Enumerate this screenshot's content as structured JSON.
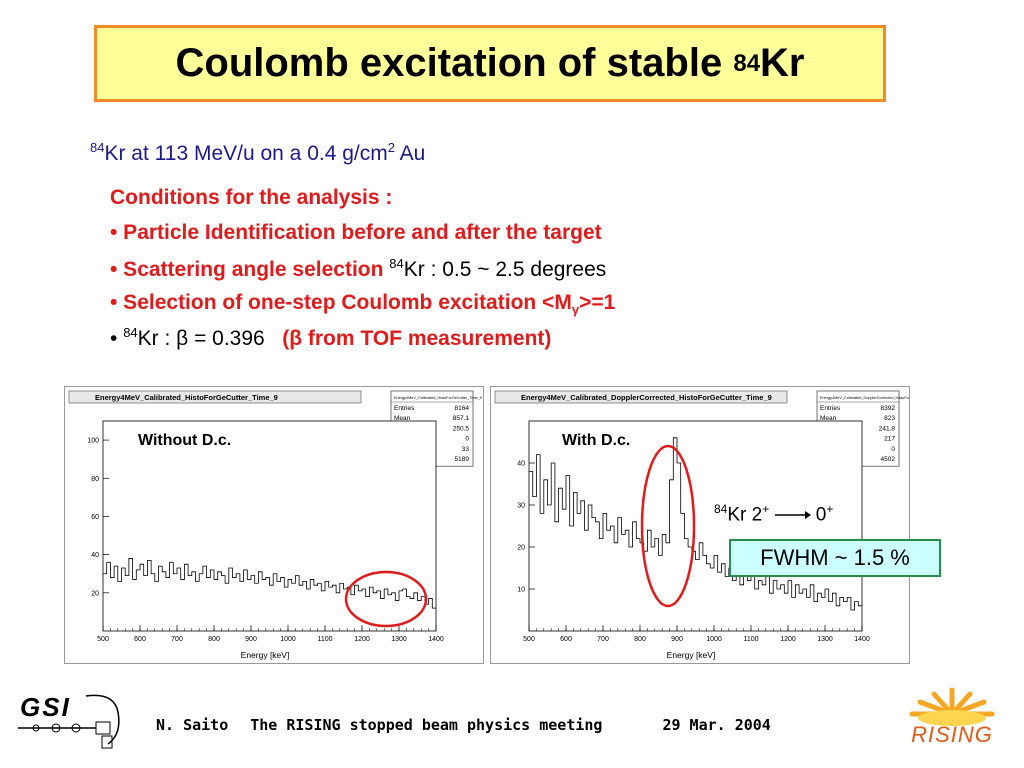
{
  "slide": {
    "title_text": "Coulomb excitation of stable ",
    "title_sup": "84",
    "title_element": "Kr",
    "subtitle": {
      "sup1": "84",
      "text1": "Kr at 113 MeV/u on a 0.4 g/cm",
      "sup2": "2",
      "text2": " Au"
    },
    "conditions": {
      "header": "Conditions for the analysis :",
      "item1": "• Particle Identification before and after the target",
      "item2_red": "• Scattering angle selection ",
      "item2_sup": "84",
      "item2_rest": "Kr : 0.5 ~ 2.5 degrees",
      "item3_red": "• Selection of one-step Coulomb excitation <M",
      "item3_sub": "γ",
      "item3_red2": ">=1",
      "item4_bullet": "• ",
      "item4_sup": "84",
      "item4_text": "Kr : β = 0.396   ",
      "item4_red": "(β from TOF measurement)"
    },
    "annotations": {
      "left_label": "Without D.c.",
      "right_label": "With D.c.",
      "transition_sup": "84",
      "transition_text1": "Kr 2",
      "transition_plus1": "+",
      "transition_text2": "0",
      "transition_plus2": "+",
      "fwhm": "FWHM ~ 1.5 %"
    },
    "footer": {
      "author": "N. Saito",
      "meeting": "The RISING stopped beam physics meeting",
      "date": "29 Mar. 2004"
    },
    "logos": {
      "left": "GSI",
      "right": "RISING"
    },
    "colors": {
      "title_bg": "#ffff99",
      "title_border": "#f08c28",
      "subtitle": "#1a1a8c",
      "red": "#e01b1b",
      "fwhm_bg": "#ccffff",
      "fwhm_border": "#2a8c4a",
      "highlight_circle": "#e01b1b"
    }
  },
  "chart_data": [
    {
      "type": "line",
      "title": "Energy4MeV_Calibrated_HistoForGeCutter_Time_9",
      "xlabel": "Energy [keV]",
      "ylabel": "",
      "xlim": [
        500,
        1400
      ],
      "ylim": [
        0,
        110
      ],
      "x_ticks": [
        500,
        600,
        700,
        800,
        900,
        1000,
        1100,
        1200,
        1300,
        1400
      ],
      "y_ticks": [
        20,
        40,
        60,
        80,
        100
      ],
      "stats": [
        {
          "name": "Entries",
          "value": "8164"
        },
        {
          "name": "Mean",
          "value": "857.1"
        },
        {
          "name": "RMS",
          "value": "250.5"
        },
        {
          "name": "Underflow",
          "value": "0"
        },
        {
          "name": "Overflow",
          "value": "33"
        },
        {
          "name": "Integral",
          "value": "5189"
        }
      ],
      "stats_title": "Energy4MeV_Calibrated_HistoForGeCutter_Time_9",
      "x": [
        500,
        510,
        520,
        530,
        540,
        550,
        560,
        570,
        580,
        590,
        600,
        610,
        620,
        630,
        640,
        650,
        660,
        670,
        680,
        690,
        700,
        710,
        720,
        730,
        740,
        750,
        760,
        770,
        780,
        790,
        800,
        810,
        820,
        830,
        840,
        850,
        860,
        870,
        880,
        890,
        900,
        910,
        920,
        930,
        940,
        950,
        960,
        970,
        980,
        990,
        1000,
        1010,
        1020,
        1030,
        1040,
        1050,
        1060,
        1070,
        1080,
        1090,
        1100,
        1110,
        1120,
        1130,
        1140,
        1150,
        1160,
        1170,
        1180,
        1190,
        1200,
        1210,
        1220,
        1230,
        1240,
        1250,
        1260,
        1270,
        1280,
        1290,
        1300,
        1310,
        1320,
        1330,
        1340,
        1350,
        1360,
        1370,
        1380,
        1390
      ],
      "y": [
        30,
        36,
        28,
        34,
        26,
        33,
        29,
        38,
        27,
        32,
        35,
        29,
        37,
        30,
        26,
        34,
        31,
        28,
        36,
        30,
        33,
        27,
        35,
        29,
        31,
        26,
        30,
        34,
        28,
        32,
        27,
        31,
        29,
        25,
        33,
        28,
        30,
        26,
        32,
        27,
        29,
        25,
        31,
        27,
        28,
        24,
        30,
        26,
        28,
        23,
        27,
        25,
        29,
        24,
        26,
        22,
        27,
        24,
        25,
        21,
        26,
        23,
        24,
        20,
        25,
        22,
        23,
        19,
        24,
        21,
        22,
        18,
        23,
        20,
        21,
        17,
        22,
        19,
        20,
        16,
        21,
        22,
        18,
        17,
        20,
        16,
        18,
        14,
        17,
        12
      ]
    },
    {
      "type": "line",
      "title": "Energy4MeV_Calibrated_DopplerCorrected_HistoForGeCutter_Time_9",
      "xlabel": "Energy [keV]",
      "ylabel": "",
      "xlim": [
        500,
        1400
      ],
      "ylim": [
        0,
        50
      ],
      "x_ticks": [
        500,
        600,
        700,
        800,
        900,
        1000,
        1100,
        1200,
        1300,
        1400
      ],
      "y_ticks": [
        10,
        20,
        30,
        40
      ],
      "stats": [
        {
          "name": "Entries",
          "value": "8392"
        },
        {
          "name": "Mean",
          "value": "823"
        },
        {
          "name": "RMS",
          "value": "241.8"
        },
        {
          "name": "Underflow",
          "value": "217"
        },
        {
          "name": "Overflow",
          "value": "0"
        },
        {
          "name": "Integral",
          "value": "4502"
        }
      ],
      "stats_title": "Energy4MeV_Calibrated_DopplerCorrected_HistoForGeCutter_Time_9",
      "x": [
        500,
        510,
        520,
        530,
        540,
        550,
        560,
        570,
        580,
        590,
        600,
        610,
        620,
        630,
        640,
        650,
        660,
        670,
        680,
        690,
        700,
        710,
        720,
        730,
        740,
        750,
        760,
        770,
        780,
        790,
        800,
        810,
        820,
        830,
        840,
        850,
        860,
        870,
        880,
        890,
        900,
        910,
        920,
        930,
        940,
        950,
        960,
        970,
        980,
        990,
        1000,
        1010,
        1020,
        1030,
        1040,
        1050,
        1060,
        1070,
        1080,
        1090,
        1100,
        1110,
        1120,
        1130,
        1140,
        1150,
        1160,
        1170,
        1180,
        1190,
        1200,
        1210,
        1220,
        1230,
        1240,
        1250,
        1260,
        1270,
        1280,
        1290,
        1300,
        1310,
        1320,
        1330,
        1340,
        1350,
        1360,
        1370,
        1380,
        1390
      ],
      "y": [
        38,
        32,
        42,
        28,
        36,
        30,
        40,
        26,
        34,
        29,
        37,
        25,
        33,
        28,
        31,
        24,
        30,
        27,
        26,
        22,
        28,
        24,
        25,
        21,
        27,
        23,
        24,
        20,
        26,
        22,
        21,
        19,
        24,
        20,
        22,
        18,
        23,
        21,
        36,
        46,
        40,
        28,
        22,
        20,
        19,
        17,
        21,
        18,
        16,
        15,
        18,
        14,
        16,
        13,
        15,
        12,
        14,
        11,
        13,
        12,
        14,
        10,
        12,
        11,
        13,
        9,
        12,
        10,
        11,
        9,
        12,
        8,
        11,
        9,
        10,
        8,
        11,
        7,
        9,
        8,
        10,
        7,
        9,
        6,
        8,
        7,
        8,
        5,
        7,
        6
      ]
    }
  ]
}
